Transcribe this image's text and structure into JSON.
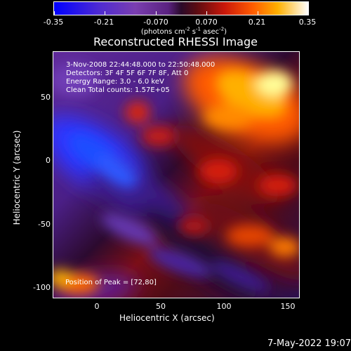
{
  "colorbar": {
    "ticks": [
      "-0.35",
      "-0.21",
      "-0.070",
      "0.070",
      "0.21",
      "0.35"
    ],
    "unit_prefix": "(photons cm",
    "unit_exp1": "-2",
    "unit_mid1": " s",
    "unit_exp2": "-1",
    "unit_mid2": " asec",
    "unit_exp3": "-2",
    "unit_suffix": ")"
  },
  "plot": {
    "title": "Reconstructed RHESSI Image",
    "x_axis_label": "Heliocentric X (arcsec)",
    "y_axis_label": "Heliocentric Y (arcsec)",
    "x_ticks": [
      "0",
      "50",
      "100",
      "150"
    ],
    "y_ticks": [
      "50",
      "0",
      "-50",
      "-100"
    ],
    "annotation_lines": [
      "3-Nov-2008 22:44:48.000 to 22:50:48.000",
      "Detectors: 3F 4F 5F 6F 7F 8F, Att 0",
      "Energy Range: 3.0 - 6.0 keV",
      "Clean    Total counts: 1.57E+05"
    ],
    "peak_label": "Position of Peak = [72,80]"
  },
  "footer": {
    "timestamp": "7-May-2022 19:07"
  },
  "colors": {
    "background": "#000000",
    "foreground": "#ffffff",
    "low": "#0000ff",
    "mid_low": "#5a2280",
    "mid_high": "#c9170a",
    "high": "#ffffff"
  }
}
